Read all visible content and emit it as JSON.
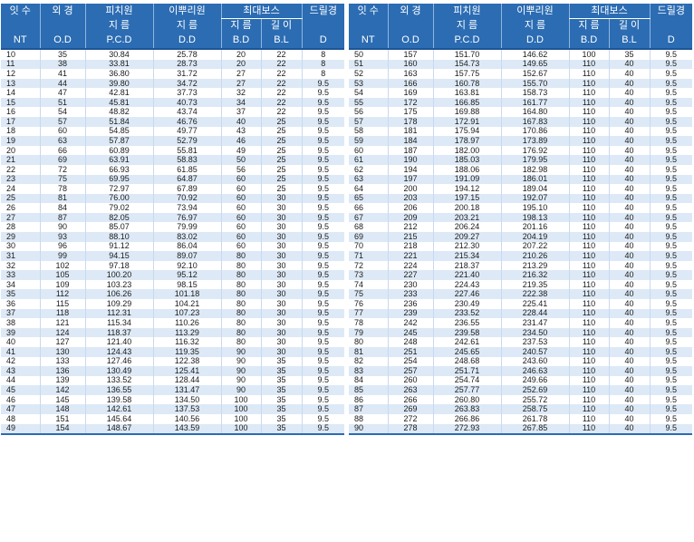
{
  "headers": {
    "teeth": "잇 수",
    "teeth_sub": "NT",
    "od": "외 경",
    "od_sub": "O.D",
    "pcd": "피치원",
    "pcd_mid": "지 름",
    "pcd_sub": "P.C.D",
    "root": "이뿌리원",
    "root_mid": "지 름",
    "root_sub": "D.D",
    "boss": "최대보스",
    "boss_diameter": "지 름",
    "boss_diameter_sub": "B.D",
    "boss_length": "길 이",
    "boss_length_sub": "B.L",
    "drill": "드릴경",
    "drill_sub": "D"
  },
  "left_rows": [
    [
      "10",
      "35",
      "30.84",
      "25.78",
      "20",
      "22",
      "8"
    ],
    [
      "11",
      "38",
      "33.81",
      "28.73",
      "20",
      "22",
      "8"
    ],
    [
      "12",
      "41",
      "36.80",
      "31.72",
      "27",
      "22",
      "8"
    ],
    [
      "13",
      "44",
      "39.80",
      "34.72",
      "27",
      "22",
      "9.5"
    ],
    [
      "14",
      "47",
      "42.81",
      "37.73",
      "32",
      "22",
      "9.5"
    ],
    [
      "15",
      "51",
      "45.81",
      "40.73",
      "34",
      "22",
      "9.5"
    ],
    [
      "16",
      "54",
      "48.82",
      "43.74",
      "37",
      "22",
      "9.5"
    ],
    [
      "17",
      "57",
      "51.84",
      "46.76",
      "40",
      "25",
      "9.5"
    ],
    [
      "18",
      "60",
      "54.85",
      "49.77",
      "43",
      "25",
      "9.5"
    ],
    [
      "19",
      "63",
      "57.87",
      "52.79",
      "46",
      "25",
      "9.5"
    ],
    [
      "20",
      "66",
      "60.89",
      "55.81",
      "49",
      "25",
      "9.5"
    ],
    [
      "21",
      "69",
      "63.91",
      "58.83",
      "50",
      "25",
      "9.5"
    ],
    [
      "22",
      "72",
      "66.93",
      "61.85",
      "56",
      "25",
      "9.5"
    ],
    [
      "23",
      "75",
      "69.95",
      "64.87",
      "60",
      "25",
      "9.5"
    ],
    [
      "24",
      "78",
      "72.97",
      "67.89",
      "60",
      "25",
      "9.5"
    ],
    [
      "25",
      "81",
      "76.00",
      "70.92",
      "60",
      "30",
      "9.5"
    ],
    [
      "26",
      "84",
      "79.02",
      "73.94",
      "60",
      "30",
      "9.5"
    ],
    [
      "27",
      "87",
      "82.05",
      "76.97",
      "60",
      "30",
      "9.5"
    ],
    [
      "28",
      "90",
      "85.07",
      "79.99",
      "60",
      "30",
      "9.5"
    ],
    [
      "29",
      "93",
      "88.10",
      "83.02",
      "60",
      "30",
      "9.5"
    ],
    [
      "30",
      "96",
      "91.12",
      "86.04",
      "60",
      "30",
      "9.5"
    ],
    [
      "31",
      "99",
      "94.15",
      "89.07",
      "80",
      "30",
      "9.5"
    ],
    [
      "32",
      "102",
      "97.18",
      "92.10",
      "80",
      "30",
      "9.5"
    ],
    [
      "33",
      "105",
      "100.20",
      "95.12",
      "80",
      "30",
      "9.5"
    ],
    [
      "34",
      "109",
      "103.23",
      "98.15",
      "80",
      "30",
      "9.5"
    ],
    [
      "35",
      "112",
      "106.26",
      "101.18",
      "80",
      "30",
      "9.5"
    ],
    [
      "36",
      "115",
      "109.29",
      "104.21",
      "80",
      "30",
      "9.5"
    ],
    [
      "37",
      "118",
      "112.31",
      "107.23",
      "80",
      "30",
      "9.5"
    ],
    [
      "38",
      "121",
      "115.34",
      "110.26",
      "80",
      "30",
      "9.5"
    ],
    [
      "39",
      "124",
      "118.37",
      "113.29",
      "80",
      "30",
      "9.5"
    ],
    [
      "40",
      "127",
      "121.40",
      "116.32",
      "80",
      "30",
      "9.5"
    ],
    [
      "41",
      "130",
      "124.43",
      "119.35",
      "90",
      "30",
      "9.5"
    ],
    [
      "42",
      "133",
      "127.46",
      "122.38",
      "90",
      "35",
      "9.5"
    ],
    [
      "43",
      "136",
      "130.49",
      "125.41",
      "90",
      "35",
      "9.5"
    ],
    [
      "44",
      "139",
      "133.52",
      "128.44",
      "90",
      "35",
      "9.5"
    ],
    [
      "45",
      "142",
      "136.55",
      "131.47",
      "90",
      "35",
      "9.5"
    ],
    [
      "46",
      "145",
      "139.58",
      "134.50",
      "100",
      "35",
      "9.5"
    ],
    [
      "47",
      "148",
      "142.61",
      "137.53",
      "100",
      "35",
      "9.5"
    ],
    [
      "48",
      "151",
      "145.64",
      "140.56",
      "100",
      "35",
      "9.5"
    ],
    [
      "49",
      "154",
      "148.67",
      "143.59",
      "100",
      "35",
      "9.5"
    ]
  ],
  "right_rows": [
    [
      "50",
      "157",
      "151.70",
      "146.62",
      "100",
      "35",
      "9.5"
    ],
    [
      "51",
      "160",
      "154.73",
      "149.65",
      "110",
      "40",
      "9.5"
    ],
    [
      "52",
      "163",
      "157.75",
      "152.67",
      "110",
      "40",
      "9.5"
    ],
    [
      "53",
      "166",
      "160.78",
      "155.70",
      "110",
      "40",
      "9.5"
    ],
    [
      "54",
      "169",
      "163.81",
      "158.73",
      "110",
      "40",
      "9.5"
    ],
    [
      "55",
      "172",
      "166.85",
      "161.77",
      "110",
      "40",
      "9.5"
    ],
    [
      "56",
      "175",
      "169.88",
      "164.80",
      "110",
      "40",
      "9.5"
    ],
    [
      "57",
      "178",
      "172.91",
      "167.83",
      "110",
      "40",
      "9.5"
    ],
    [
      "58",
      "181",
      "175.94",
      "170.86",
      "110",
      "40",
      "9.5"
    ],
    [
      "59",
      "184",
      "178.97",
      "173.89",
      "110",
      "40",
      "9.5"
    ],
    [
      "60",
      "187",
      "182.00",
      "176.92",
      "110",
      "40",
      "9.5"
    ],
    [
      "61",
      "190",
      "185.03",
      "179.95",
      "110",
      "40",
      "9.5"
    ],
    [
      "62",
      "194",
      "188.06",
      "182.98",
      "110",
      "40",
      "9.5"
    ],
    [
      "63",
      "197",
      "191.09",
      "186.01",
      "110",
      "40",
      "9.5"
    ],
    [
      "64",
      "200",
      "194.12",
      "189.04",
      "110",
      "40",
      "9.5"
    ],
    [
      "65",
      "203",
      "197.15",
      "192.07",
      "110",
      "40",
      "9.5"
    ],
    [
      "66",
      "206",
      "200.18",
      "195.10",
      "110",
      "40",
      "9.5"
    ],
    [
      "67",
      "209",
      "203.21",
      "198.13",
      "110",
      "40",
      "9.5"
    ],
    [
      "68",
      "212",
      "206.24",
      "201.16",
      "110",
      "40",
      "9.5"
    ],
    [
      "69",
      "215",
      "209.27",
      "204.19",
      "110",
      "40",
      "9.5"
    ],
    [
      "70",
      "218",
      "212.30",
      "207.22",
      "110",
      "40",
      "9.5"
    ],
    [
      "71",
      "221",
      "215.34",
      "210.26",
      "110",
      "40",
      "9.5"
    ],
    [
      "72",
      "224",
      "218.37",
      "213.29",
      "110",
      "40",
      "9.5"
    ],
    [
      "73",
      "227",
      "221.40",
      "216.32",
      "110",
      "40",
      "9.5"
    ],
    [
      "74",
      "230",
      "224.43",
      "219.35",
      "110",
      "40",
      "9.5"
    ],
    [
      "75",
      "233",
      "227.46",
      "222.38",
      "110",
      "40",
      "9.5"
    ],
    [
      "76",
      "236",
      "230.49",
      "225.41",
      "110",
      "40",
      "9.5"
    ],
    [
      "77",
      "239",
      "233.52",
      "228.44",
      "110",
      "40",
      "9.5"
    ],
    [
      "78",
      "242",
      "236.55",
      "231.47",
      "110",
      "40",
      "9.5"
    ],
    [
      "79",
      "245",
      "239.58",
      "234.50",
      "110",
      "40",
      "9.5"
    ],
    [
      "80",
      "248",
      "242.61",
      "237.53",
      "110",
      "40",
      "9.5"
    ],
    [
      "81",
      "251",
      "245.65",
      "240.57",
      "110",
      "40",
      "9.5"
    ],
    [
      "82",
      "254",
      "248.68",
      "243.60",
      "110",
      "40",
      "9.5"
    ],
    [
      "83",
      "257",
      "251.71",
      "246.63",
      "110",
      "40",
      "9.5"
    ],
    [
      "84",
      "260",
      "254.74",
      "249.66",
      "110",
      "40",
      "9.5"
    ],
    [
      "85",
      "263",
      "257.77",
      "252.69",
      "110",
      "40",
      "9.5"
    ],
    [
      "86",
      "266",
      "260.80",
      "255.72",
      "110",
      "40",
      "9.5"
    ],
    [
      "87",
      "269",
      "263.83",
      "258.75",
      "110",
      "40",
      "9.5"
    ],
    [
      "88",
      "272",
      "266.86",
      "261.78",
      "110",
      "40",
      "9.5"
    ],
    [
      "90",
      "278",
      "272.93",
      "267.85",
      "110",
      "40",
      "9.5"
    ]
  ],
  "colors": {
    "header_bg": "#2b6cb3",
    "header_text": "#ffffff",
    "stripe": "#dde9f6"
  }
}
